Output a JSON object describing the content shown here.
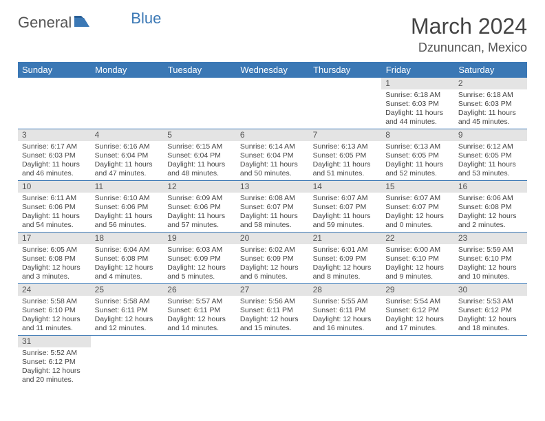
{
  "logo": {
    "word1": "General",
    "word2": "Blue"
  },
  "title": "March 2024",
  "location": "Dzununcan, Mexico",
  "colors": {
    "header_bg": "#3b78b5",
    "header_text": "#ffffff",
    "daynum_bg": "#e4e4e4",
    "text": "#444444",
    "rule": "#3b78b5"
  },
  "font": {
    "title_size": 32,
    "location_size": 18,
    "day_header_size": 13,
    "body_size": 10.5
  },
  "day_headers": [
    "Sunday",
    "Monday",
    "Tuesday",
    "Wednesday",
    "Thursday",
    "Friday",
    "Saturday"
  ],
  "weeks": [
    [
      null,
      null,
      null,
      null,
      null,
      {
        "n": "1",
        "sunrise": "Sunrise: 6:18 AM",
        "sunset": "Sunset: 6:03 PM",
        "daylight": "Daylight: 11 hours and 44 minutes."
      },
      {
        "n": "2",
        "sunrise": "Sunrise: 6:18 AM",
        "sunset": "Sunset: 6:03 PM",
        "daylight": "Daylight: 11 hours and 45 minutes."
      }
    ],
    [
      {
        "n": "3",
        "sunrise": "Sunrise: 6:17 AM",
        "sunset": "Sunset: 6:03 PM",
        "daylight": "Daylight: 11 hours and 46 minutes."
      },
      {
        "n": "4",
        "sunrise": "Sunrise: 6:16 AM",
        "sunset": "Sunset: 6:04 PM",
        "daylight": "Daylight: 11 hours and 47 minutes."
      },
      {
        "n": "5",
        "sunrise": "Sunrise: 6:15 AM",
        "sunset": "Sunset: 6:04 PM",
        "daylight": "Daylight: 11 hours and 48 minutes."
      },
      {
        "n": "6",
        "sunrise": "Sunrise: 6:14 AM",
        "sunset": "Sunset: 6:04 PM",
        "daylight": "Daylight: 11 hours and 50 minutes."
      },
      {
        "n": "7",
        "sunrise": "Sunrise: 6:13 AM",
        "sunset": "Sunset: 6:05 PM",
        "daylight": "Daylight: 11 hours and 51 minutes."
      },
      {
        "n": "8",
        "sunrise": "Sunrise: 6:13 AM",
        "sunset": "Sunset: 6:05 PM",
        "daylight": "Daylight: 11 hours and 52 minutes."
      },
      {
        "n": "9",
        "sunrise": "Sunrise: 6:12 AM",
        "sunset": "Sunset: 6:05 PM",
        "daylight": "Daylight: 11 hours and 53 minutes."
      }
    ],
    [
      {
        "n": "10",
        "sunrise": "Sunrise: 6:11 AM",
        "sunset": "Sunset: 6:06 PM",
        "daylight": "Daylight: 11 hours and 54 minutes."
      },
      {
        "n": "11",
        "sunrise": "Sunrise: 6:10 AM",
        "sunset": "Sunset: 6:06 PM",
        "daylight": "Daylight: 11 hours and 56 minutes."
      },
      {
        "n": "12",
        "sunrise": "Sunrise: 6:09 AM",
        "sunset": "Sunset: 6:06 PM",
        "daylight": "Daylight: 11 hours and 57 minutes."
      },
      {
        "n": "13",
        "sunrise": "Sunrise: 6:08 AM",
        "sunset": "Sunset: 6:07 PM",
        "daylight": "Daylight: 11 hours and 58 minutes."
      },
      {
        "n": "14",
        "sunrise": "Sunrise: 6:07 AM",
        "sunset": "Sunset: 6:07 PM",
        "daylight": "Daylight: 11 hours and 59 minutes."
      },
      {
        "n": "15",
        "sunrise": "Sunrise: 6:07 AM",
        "sunset": "Sunset: 6:07 PM",
        "daylight": "Daylight: 12 hours and 0 minutes."
      },
      {
        "n": "16",
        "sunrise": "Sunrise: 6:06 AM",
        "sunset": "Sunset: 6:08 PM",
        "daylight": "Daylight: 12 hours and 2 minutes."
      }
    ],
    [
      {
        "n": "17",
        "sunrise": "Sunrise: 6:05 AM",
        "sunset": "Sunset: 6:08 PM",
        "daylight": "Daylight: 12 hours and 3 minutes."
      },
      {
        "n": "18",
        "sunrise": "Sunrise: 6:04 AM",
        "sunset": "Sunset: 6:08 PM",
        "daylight": "Daylight: 12 hours and 4 minutes."
      },
      {
        "n": "19",
        "sunrise": "Sunrise: 6:03 AM",
        "sunset": "Sunset: 6:09 PM",
        "daylight": "Daylight: 12 hours and 5 minutes."
      },
      {
        "n": "20",
        "sunrise": "Sunrise: 6:02 AM",
        "sunset": "Sunset: 6:09 PM",
        "daylight": "Daylight: 12 hours and 6 minutes."
      },
      {
        "n": "21",
        "sunrise": "Sunrise: 6:01 AM",
        "sunset": "Sunset: 6:09 PM",
        "daylight": "Daylight: 12 hours and 8 minutes."
      },
      {
        "n": "22",
        "sunrise": "Sunrise: 6:00 AM",
        "sunset": "Sunset: 6:10 PM",
        "daylight": "Daylight: 12 hours and 9 minutes."
      },
      {
        "n": "23",
        "sunrise": "Sunrise: 5:59 AM",
        "sunset": "Sunset: 6:10 PM",
        "daylight": "Daylight: 12 hours and 10 minutes."
      }
    ],
    [
      {
        "n": "24",
        "sunrise": "Sunrise: 5:58 AM",
        "sunset": "Sunset: 6:10 PM",
        "daylight": "Daylight: 12 hours and 11 minutes."
      },
      {
        "n": "25",
        "sunrise": "Sunrise: 5:58 AM",
        "sunset": "Sunset: 6:11 PM",
        "daylight": "Daylight: 12 hours and 12 minutes."
      },
      {
        "n": "26",
        "sunrise": "Sunrise: 5:57 AM",
        "sunset": "Sunset: 6:11 PM",
        "daylight": "Daylight: 12 hours and 14 minutes."
      },
      {
        "n": "27",
        "sunrise": "Sunrise: 5:56 AM",
        "sunset": "Sunset: 6:11 PM",
        "daylight": "Daylight: 12 hours and 15 minutes."
      },
      {
        "n": "28",
        "sunrise": "Sunrise: 5:55 AM",
        "sunset": "Sunset: 6:11 PM",
        "daylight": "Daylight: 12 hours and 16 minutes."
      },
      {
        "n": "29",
        "sunrise": "Sunrise: 5:54 AM",
        "sunset": "Sunset: 6:12 PM",
        "daylight": "Daylight: 12 hours and 17 minutes."
      },
      {
        "n": "30",
        "sunrise": "Sunrise: 5:53 AM",
        "sunset": "Sunset: 6:12 PM",
        "daylight": "Daylight: 12 hours and 18 minutes."
      }
    ],
    [
      {
        "n": "31",
        "sunrise": "Sunrise: 5:52 AM",
        "sunset": "Sunset: 6:12 PM",
        "daylight": "Daylight: 12 hours and 20 minutes."
      },
      null,
      null,
      null,
      null,
      null,
      null
    ]
  ]
}
